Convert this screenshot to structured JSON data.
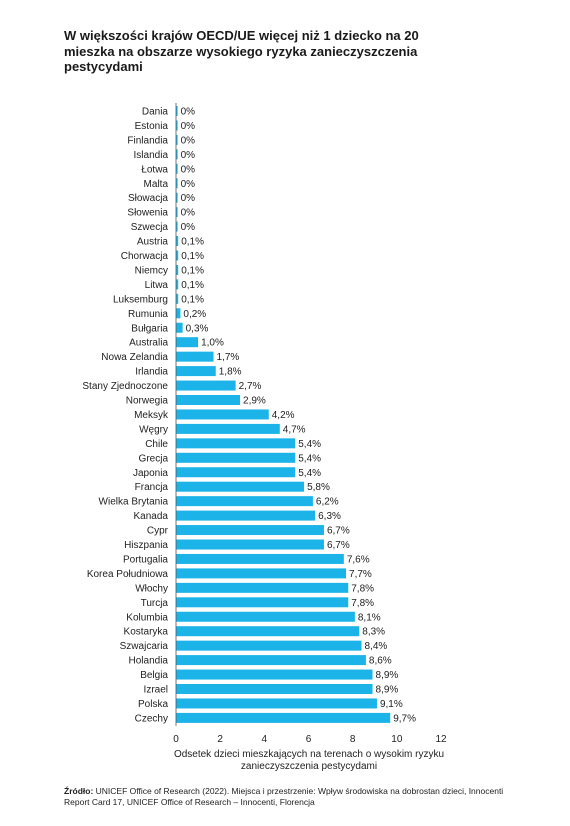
{
  "title": "W większości krajów OECD/UE więcej niż 1 dziecko na 20 mieszka na obszarze wysokiego ryzyka zanieczyszczenia pestycydami",
  "source": {
    "label": "Źródło:",
    "text": "UNICEF Office of Research (2022). Miejsca i przestrzenie: Wpływ środowiska na dobrostan dzieci, Innocenti Report Card 17, UNICEF Office of Research – Innocenti, Florencja"
  },
  "colors": {
    "bar": "#1CB4E8",
    "axis": "#555555",
    "zero_bar": "#1CB4E8"
  },
  "chart_data": {
    "type": "bar",
    "orientation": "horizontal",
    "title": "W większości krajów OECD/UE więcej niż 1 dziecko na 20 mieszka na obszarze wysokiego ryzyka zanieczyszczenia pestycydami",
    "xlabel_lines": [
      "Odsetek dzieci mieszkających na terenach o wysokim ryzyku",
      "zanieczyszczenia pestycydami"
    ],
    "xlim": [
      0,
      12
    ],
    "xticks": [
      0,
      2,
      4,
      6,
      8,
      10,
      12
    ],
    "grid": false,
    "categories": [
      "Dania",
      "Estonia",
      "Finlandia",
      "Islandia",
      "Łotwa",
      "Malta",
      "Słowacja",
      "Słowenia",
      "Szwecja",
      "Austria",
      "Chorwacja",
      "Niemcy",
      "Litwa",
      "Luksemburg",
      "Rumunia",
      "Bułgaria",
      "Australia",
      "Nowa Zelandia",
      "Irlandia",
      "Stany Zjednoczone",
      "Norwegia",
      "Meksyk",
      "Węgry",
      "Chile",
      "Grecja",
      "Japonia",
      "Francja",
      "Wielka Brytania",
      "Kanada",
      "Cypr",
      "Hiszpania",
      "Portugalia",
      "Korea Południowa",
      "Włochy",
      "Turcja",
      "Kolumbia",
      "Kostaryka",
      "Szwajcaria",
      "Holandia",
      "Belgia",
      "Izrael",
      "Polska",
      "Czechy"
    ],
    "values": [
      0,
      0,
      0,
      0,
      0,
      0,
      0,
      0,
      0,
      0.1,
      0.1,
      0.1,
      0.1,
      0.1,
      0.2,
      0.3,
      1.0,
      1.7,
      1.8,
      2.7,
      2.9,
      4.2,
      4.7,
      5.4,
      5.4,
      5.4,
      5.8,
      6.2,
      6.3,
      6.7,
      6.7,
      7.6,
      7.7,
      7.8,
      7.8,
      8.1,
      8.3,
      8.4,
      8.6,
      8.9,
      8.9,
      9.1,
      9.7
    ],
    "value_labels": [
      "0%",
      "0%",
      "0%",
      "0%",
      "0%",
      "0%",
      "0%",
      "0%",
      "0%",
      "0,1%",
      "0,1%",
      "0,1%",
      "0,1%",
      "0,1%",
      "0,2%",
      "0,3%",
      "1,0%",
      "1,7%",
      "1,8%",
      "2,7%",
      "2,9%",
      "4,2%",
      "4,7%",
      "5,4%",
      "5,4%",
      "5,4%",
      "5,8%",
      "6,2%",
      "6,3%",
      "6,7%",
      "6,7%",
      "7,6%",
      "7,7%",
      "7,8%",
      "7,8%",
      "8,1%",
      "8,3%",
      "8,4%",
      "8,6%",
      "8,9%",
      "8,9%",
      "9,1%",
      "9,7%"
    ]
  }
}
